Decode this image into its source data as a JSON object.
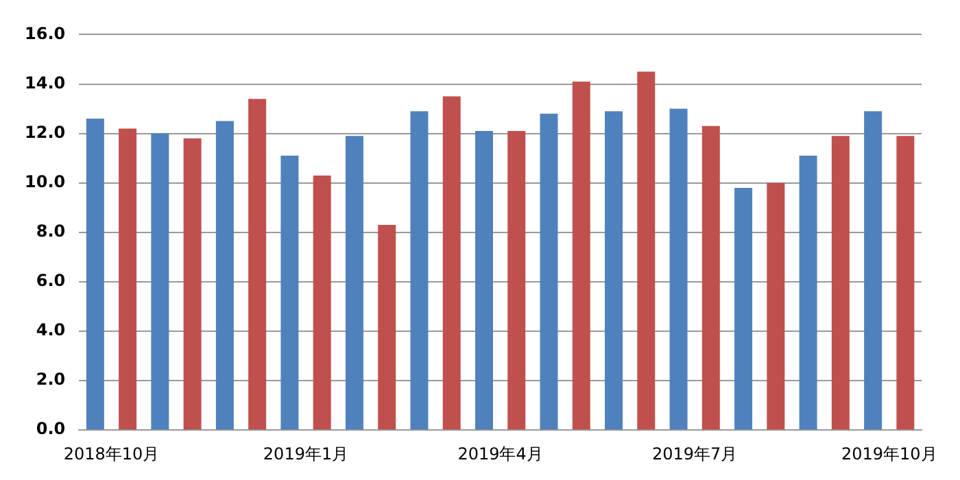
{
  "chart_data": {
    "type": "bar",
    "categories": [
      "2018年10月",
      null,
      null,
      "2019年1月",
      null,
      null,
      "2019年4月",
      null,
      null,
      "2019年7月",
      null,
      null,
      "2019年10月"
    ],
    "series": [
      {
        "color": "#4f81bd",
        "values": [
          12.6,
          12.0,
          12.5,
          11.1,
          11.9,
          12.9,
          12.1,
          12.8,
          12.9,
          13.0,
          9.8,
          11.1,
          12.9
        ]
      },
      {
        "color": "#c0504d",
        "values": [
          12.2,
          11.8,
          13.4,
          10.3,
          8.3,
          13.5,
          12.1,
          14.1,
          14.5,
          12.3,
          10.0,
          11.9,
          11.9
        ]
      }
    ],
    "ylim": [
      0,
      16
    ],
    "yticks": [
      {
        "value": 0,
        "label": "0.0"
      },
      {
        "value": 2,
        "label": "2.0"
      },
      {
        "value": 4,
        "label": "4.0"
      },
      {
        "value": 6,
        "label": "6.0"
      },
      {
        "value": 8,
        "label": "8.0"
      },
      {
        "value": 10,
        "label": "10.0"
      },
      {
        "value": 12,
        "label": "12.0"
      },
      {
        "value": 14,
        "label": "14.0"
      },
      {
        "value": 16,
        "label": "16.0"
      }
    ],
    "grid": "y",
    "legend": false
  }
}
